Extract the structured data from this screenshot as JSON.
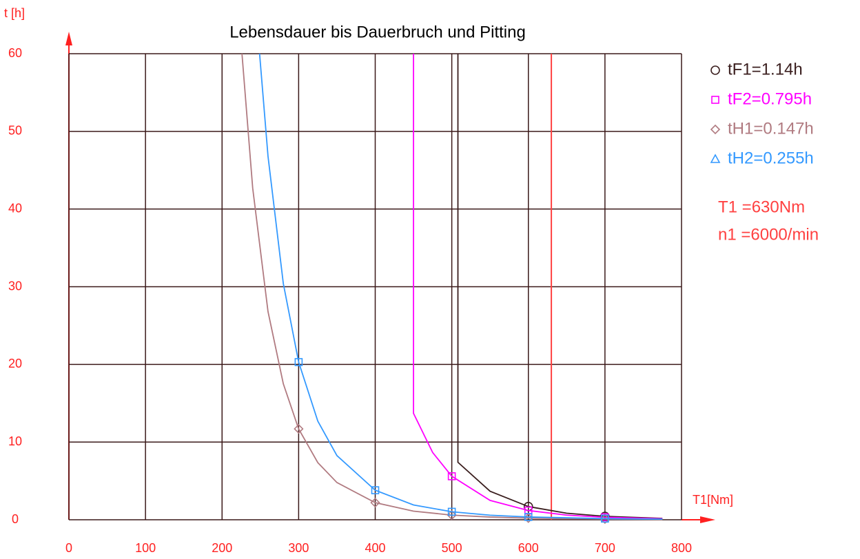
{
  "chart_data": {
    "type": "line",
    "title": "Lebensdauer bis Dauerbruch und Pitting",
    "y_label": "t [h]",
    "x_label": "T1[Nm]",
    "xlim": [
      0,
      800
    ],
    "ylim": [
      0,
      60
    ],
    "xticks": [
      0,
      100,
      200,
      300,
      400,
      500,
      600,
      700,
      800
    ],
    "yticks": [
      0,
      10,
      20,
      30,
      40,
      50,
      60
    ],
    "grid": true,
    "grid_color": "#3a1818",
    "tick_color": "#ff2020",
    "vline": {
      "x": 630,
      "color": "#ff4040"
    },
    "series": [
      {
        "name": "tF1=1.14h",
        "color": "#3a1e1e",
        "marker": "circle",
        "legend_marker": "circle",
        "x": [
          508,
          508,
          550,
          600,
          650,
          700,
          775
        ],
        "values": [
          60,
          7.4,
          3.67,
          1.7,
          0.84,
          0.44,
          0.18
        ],
        "marker_x": [
          600,
          700
        ],
        "marker_values": [
          1.7,
          0.44
        ]
      },
      {
        "name": "tF2=0.795h",
        "color": "#ff00ff",
        "marker": "square",
        "legend_marker": "square",
        "x": [
          450,
          450,
          475,
          500,
          550,
          600,
          650,
          700,
          775
        ],
        "values": [
          60,
          13.7,
          8.66,
          5.6,
          2.49,
          1.19,
          0.6,
          0.32,
          0.13
        ],
        "marker_x": [
          500,
          600,
          700
        ],
        "marker_values": [
          5.6,
          1.19,
          0.32
        ]
      },
      {
        "name": "tH1=0.147h",
        "color": "#b07a80",
        "marker": "diamond",
        "legend_marker": "diamond",
        "x": [
          226,
          240,
          260,
          280,
          300,
          325,
          350,
          400,
          450,
          500,
          550,
          600,
          700,
          775
        ],
        "values": [
          60,
          42.7,
          26.8,
          17.5,
          11.7,
          7.36,
          4.79,
          2.2,
          1.11,
          0.6,
          0.35,
          0.21,
          0.086,
          0.05
        ],
        "marker_x": [
          300,
          400,
          500,
          600,
          700
        ],
        "marker_values": [
          11.7,
          2.2,
          0.6,
          0.21,
          0.086
        ]
      },
      {
        "name": "tH2=0.255h",
        "color": "#3399ff",
        "marker": "square",
        "legend_marker": "triangle",
        "x": [
          249,
          260,
          280,
          300,
          325,
          350,
          400,
          450,
          500,
          550,
          600,
          700,
          775
        ],
        "values": [
          60,
          46.8,
          30.4,
          20.3,
          12.7,
          8.26,
          3.8,
          1.91,
          1.03,
          0.59,
          0.36,
          0.15,
          0.08
        ],
        "marker_x": [
          300,
          400,
          500,
          600,
          700
        ],
        "marker_values": [
          20.3,
          3.8,
          1.03,
          0.36,
          0.15
        ]
      }
    ],
    "annotations": [
      "T1 =630Nm",
      "n1 =6000/min"
    ]
  }
}
